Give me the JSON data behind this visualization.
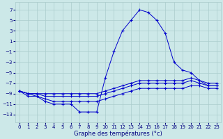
{
  "xlabel": "Graphe des températures (°c)",
  "background_color": "#cce8e8",
  "grid_color": "#aacccc",
  "line_color": "#0000cc",
  "x_ticks": [
    0,
    1,
    2,
    3,
    4,
    5,
    6,
    7,
    8,
    9,
    10,
    11,
    12,
    13,
    14,
    15,
    16,
    17,
    18,
    19,
    20,
    21,
    22,
    23
  ],
  "y_ticks": [
    -13,
    -11,
    -9,
    -7,
    -5,
    -3,
    -1,
    1,
    3,
    5,
    7
  ],
  "ylim": [
    -14.5,
    8.5
  ],
  "xlim": [
    -0.5,
    23.5
  ],
  "series": [
    {
      "x": [
        0,
        1,
        2,
        3,
        4,
        5,
        6,
        7,
        8,
        9,
        10,
        11,
        12,
        13,
        14,
        15,
        16,
        17,
        18,
        19,
        20,
        21,
        22,
        23
      ],
      "y": [
        -8.5,
        -9.5,
        -9.5,
        -10.5,
        -11.0,
        -11.0,
        -11.0,
        -12.5,
        -12.5,
        -12.5,
        -6.0,
        -1.0,
        3.0,
        5.0,
        7.0,
        6.5,
        5.0,
        2.5,
        -3.0,
        -4.5,
        -5.0,
        -6.5,
        -7.5,
        -7.5
      ]
    },
    {
      "x": [
        0,
        1,
        2,
        3,
        4,
        5,
        6,
        7,
        8,
        9,
        10,
        11,
        12,
        13,
        14,
        15,
        16,
        17,
        18,
        19,
        20,
        21,
        22,
        23
      ],
      "y": [
        -8.5,
        -9.0,
        -9.0,
        -9.0,
        -9.0,
        -9.0,
        -9.0,
        -9.0,
        -9.0,
        -9.0,
        -8.5,
        -8.0,
        -7.5,
        -7.0,
        -6.5,
        -6.5,
        -6.5,
        -6.5,
        -6.5,
        -6.5,
        -6.0,
        -6.5,
        -7.0,
        -7.0
      ]
    },
    {
      "x": [
        0,
        1,
        2,
        3,
        4,
        5,
        6,
        7,
        8,
        9,
        10,
        11,
        12,
        13,
        14,
        15,
        16,
        17,
        18,
        19,
        20,
        21,
        22,
        23
      ],
      "y": [
        -8.5,
        -9.0,
        -9.0,
        -9.5,
        -9.5,
        -9.5,
        -9.5,
        -9.5,
        -9.5,
        -9.5,
        -9.0,
        -8.5,
        -8.0,
        -7.5,
        -7.0,
        -7.0,
        -7.0,
        -7.0,
        -7.0,
        -7.0,
        -6.5,
        -7.0,
        -7.5,
        -7.5
      ]
    },
    {
      "x": [
        0,
        1,
        2,
        3,
        4,
        5,
        6,
        7,
        8,
        9,
        10,
        11,
        12,
        13,
        14,
        15,
        16,
        17,
        18,
        19,
        20,
        21,
        22,
        23
      ],
      "y": [
        -8.5,
        -9.0,
        -9.5,
        -10.0,
        -10.5,
        -10.5,
        -10.5,
        -10.5,
        -10.5,
        -10.5,
        -10.0,
        -9.5,
        -9.0,
        -8.5,
        -8.0,
        -8.0,
        -8.0,
        -8.0,
        -8.0,
        -8.0,
        -7.5,
        -7.5,
        -8.0,
        -8.0
      ]
    }
  ]
}
